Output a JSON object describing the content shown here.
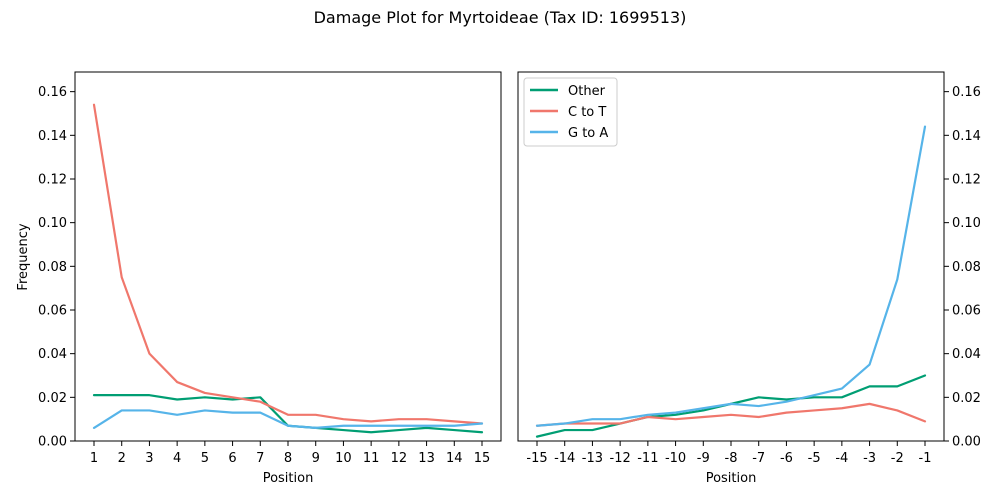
{
  "chart_data": {
    "type": "line",
    "title": "Damage Plot for Myrtoideae (Tax ID: 1699513)",
    "panels": [
      {
        "name": "five-prime",
        "xlabel": "Position",
        "ylabel": "Frequency",
        "x": [
          "1",
          "2",
          "3",
          "4",
          "5",
          "6",
          "7",
          "8",
          "9",
          "10",
          "11",
          "12",
          "13",
          "14",
          "15"
        ],
        "ylim": [
          0,
          0.169
        ],
        "yticks": [
          "0.00",
          "0.02",
          "0.04",
          "0.06",
          "0.08",
          "0.10",
          "0.12",
          "0.14",
          "0.16"
        ],
        "series": [
          {
            "name": "Other",
            "color": "#009E73",
            "values": [
              0.021,
              0.021,
              0.021,
              0.019,
              0.02,
              0.019,
              0.02,
              0.007,
              0.006,
              0.005,
              0.004,
              0.005,
              0.006,
              0.005,
              0.004
            ]
          },
          {
            "name": "C to T",
            "color": "#F0776C",
            "values": [
              0.154,
              0.075,
              0.04,
              0.027,
              0.022,
              0.02,
              0.018,
              0.012,
              0.012,
              0.01,
              0.009,
              0.01,
              0.01,
              0.009,
              0.008
            ]
          },
          {
            "name": "G to A",
            "color": "#56B4E9",
            "values": [
              0.006,
              0.014,
              0.014,
              0.012,
              0.014,
              0.013,
              0.013,
              0.007,
              0.006,
              0.007,
              0.007,
              0.007,
              0.007,
              0.007,
              0.008
            ]
          }
        ]
      },
      {
        "name": "three-prime",
        "xlabel": "Position",
        "ylabel": "",
        "x": [
          "-15",
          "-14",
          "-13",
          "-12",
          "-11",
          "-10",
          "-9",
          "-8",
          "-7",
          "-6",
          "-5",
          "-4",
          "-3",
          "-2",
          "-1"
        ],
        "ylim": [
          0,
          0.169
        ],
        "yticks": [
          "0.00",
          "0.02",
          "0.04",
          "0.06",
          "0.08",
          "0.10",
          "0.12",
          "0.14",
          "0.16"
        ],
        "series": [
          {
            "name": "Other",
            "color": "#009E73",
            "values": [
              0.002,
              0.005,
              0.005,
              0.008,
              0.011,
              0.012,
              0.014,
              0.017,
              0.02,
              0.019,
              0.02,
              0.02,
              0.025,
              0.025,
              0.03
            ]
          },
          {
            "name": "C to T",
            "color": "#F0776C",
            "values": [
              0.007,
              0.008,
              0.008,
              0.008,
              0.011,
              0.01,
              0.011,
              0.012,
              0.011,
              0.013,
              0.014,
              0.015,
              0.017,
              0.014,
              0.009
            ]
          },
          {
            "name": "G to A",
            "color": "#56B4E9",
            "values": [
              0.007,
              0.008,
              0.01,
              0.01,
              0.012,
              0.013,
              0.015,
              0.017,
              0.016,
              0.018,
              0.021,
              0.024,
              0.035,
              0.074,
              0.144
            ]
          }
        ]
      }
    ],
    "legend": {
      "placement": "top-left",
      "panel": "three-prime",
      "entries": [
        "Other",
        "C to T",
        "G to A"
      ]
    }
  }
}
